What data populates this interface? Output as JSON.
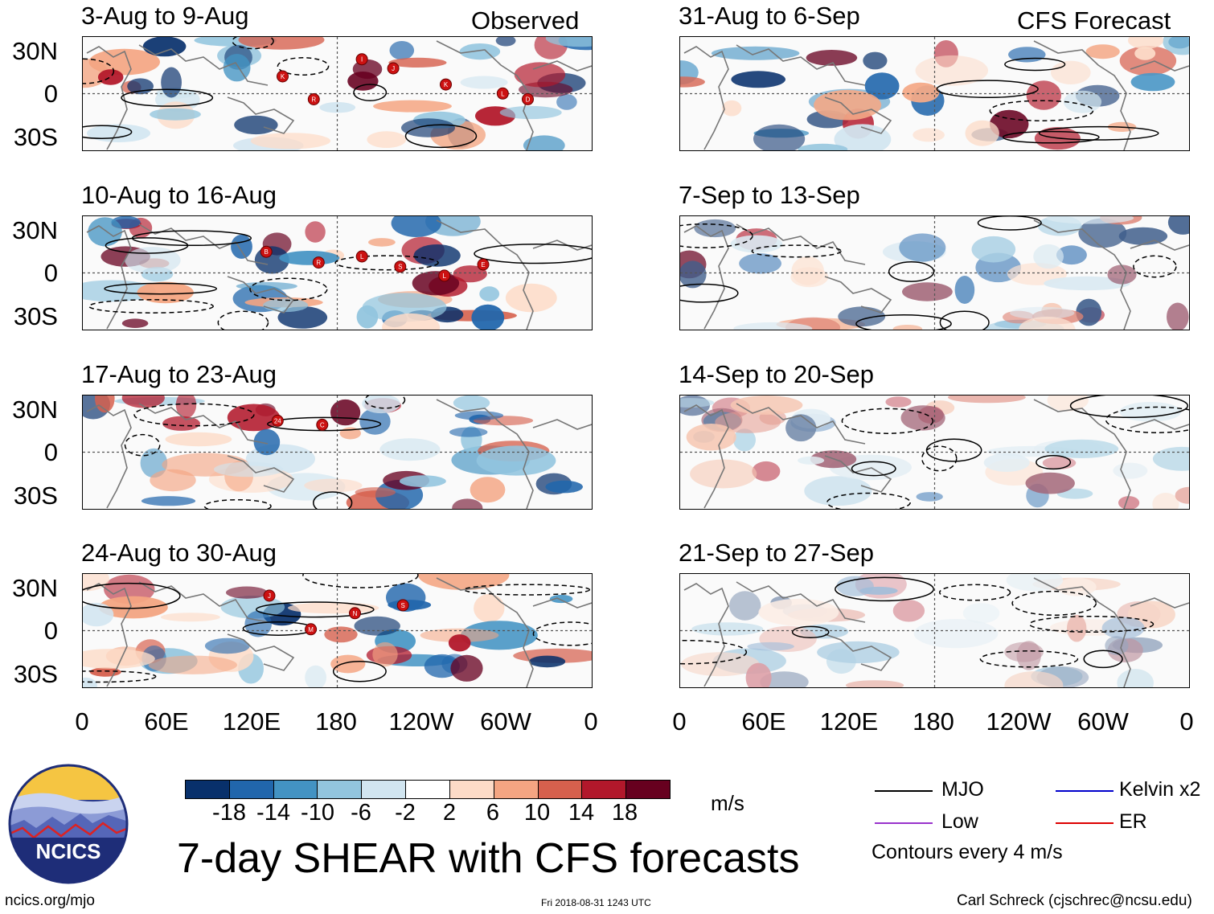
{
  "column_labels": {
    "left": "Observed",
    "right": "CFS Forecast"
  },
  "panels": [
    {
      "title": "3-Aug to 9-Aug",
      "storms": [
        "K",
        "R",
        "I",
        "J",
        "K",
        "L",
        "D"
      ]
    },
    {
      "title": "31-Aug to 6-Sep",
      "storms": []
    },
    {
      "title": "10-Aug to 16-Aug",
      "storms": [
        "B",
        "R",
        "L",
        "S",
        "L",
        "E"
      ]
    },
    {
      "title": "7-Sep to 13-Sep",
      "storms": []
    },
    {
      "title": "17-Aug to 23-Aug",
      "storms": [
        "24",
        "C"
      ]
    },
    {
      "title": "14-Sep to 20-Sep",
      "storms": []
    },
    {
      "title": "24-Aug to 30-Aug",
      "storms": [
        "J",
        "M",
        "N",
        "S"
      ]
    },
    {
      "title": "21-Sep to 27-Sep",
      "storms": []
    }
  ],
  "lat_labels": [
    "30N",
    "0",
    "30S"
  ],
  "lon_labels": [
    "0",
    "60E",
    "120E",
    "180",
    "120W",
    "60W",
    "0"
  ],
  "colorbar": {
    "colors": [
      "#08306b",
      "#2166ac",
      "#4393c3",
      "#92c5de",
      "#d1e5f0",
      "#ffffff",
      "#fddbc7",
      "#f4a582",
      "#d6604d",
      "#b2182b",
      "#67001f"
    ],
    "ticks": [
      "-18",
      "-14",
      "-10",
      "-6",
      "-2",
      "2",
      "6",
      "10",
      "14",
      "18"
    ],
    "unit": "m/s"
  },
  "title": "7-day SHEAR with CFS forecasts",
  "legend": {
    "items": [
      {
        "label": "MJO",
        "color": "#000000"
      },
      {
        "label": "Kelvin x2",
        "color": "#0000cc"
      },
      {
        "label": "Low",
        "color": "#9933cc"
      },
      {
        "label": "ER",
        "color": "#dd0000"
      }
    ],
    "note": "Contours every 4 m/s"
  },
  "footer": {
    "left": "ncics.org/mjo",
    "center": "Fri 2018-08-31 1243 UTC",
    "right": "Carl Schreck (cjschrec@ncsu.edu)"
  },
  "logo": {
    "text": "NCICS"
  }
}
